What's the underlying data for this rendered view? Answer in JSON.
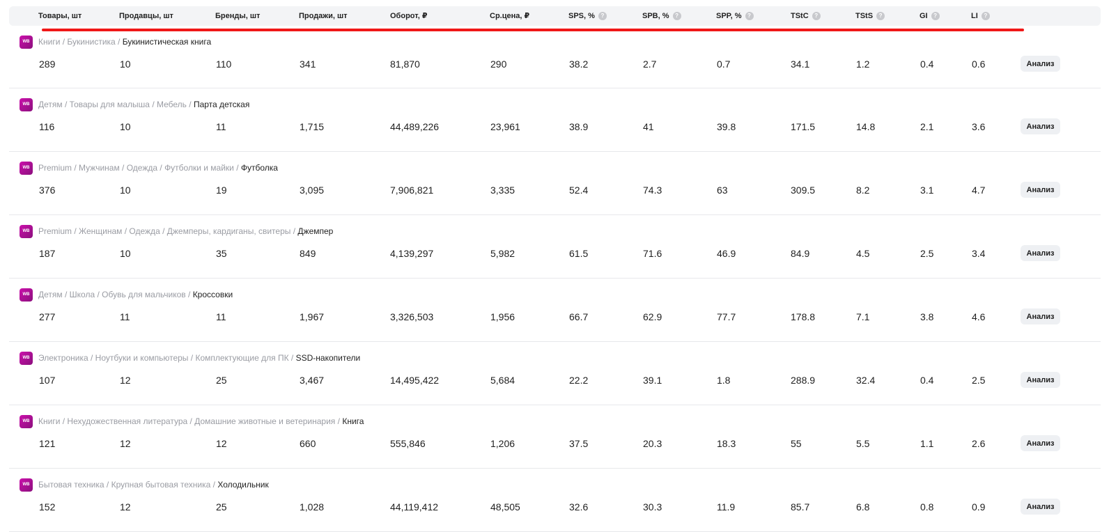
{
  "columns": [
    {
      "label": "Товары, шт",
      "help": false
    },
    {
      "label": "Продавцы, шт",
      "help": false
    },
    {
      "label": "Бренды, шт",
      "help": false
    },
    {
      "label": "Продажи, шт",
      "help": false
    },
    {
      "label": "Оборот, ₽",
      "help": false
    },
    {
      "label": "Ср.цена, ₽",
      "help": false
    },
    {
      "label": "SPS, %",
      "help": true
    },
    {
      "label": "SPB, %",
      "help": true
    },
    {
      "label": "SPP, %",
      "help": true
    },
    {
      "label": "TStC",
      "help": true
    },
    {
      "label": "TStS",
      "help": true
    },
    {
      "label": "GI",
      "help": true
    },
    {
      "label": "LI",
      "help": true
    }
  ],
  "logo_text": "WB",
  "help_glyph": "?",
  "action_label": "Анализ",
  "rows": [
    {
      "path": [
        "Книги",
        "Букинистика"
      ],
      "leaf": "Букинистическая книга",
      "values": [
        "289",
        "10",
        "110",
        "341",
        "81,870",
        "290",
        "38.2",
        "2.7",
        "0.7",
        "34.1",
        "1.2",
        "0.4",
        "0.6"
      ]
    },
    {
      "path": [
        "Детям",
        "Товары для малыша",
        "Мебель"
      ],
      "leaf": "Парта детская",
      "values": [
        "116",
        "10",
        "11",
        "1,715",
        "44,489,226",
        "23,961",
        "38.9",
        "41",
        "39.8",
        "171.5",
        "14.8",
        "2.1",
        "3.6"
      ]
    },
    {
      "path": [
        "Premium",
        "Мужчинам",
        "Одежда",
        "Футболки и майки"
      ],
      "leaf": "Футболка",
      "values": [
        "376",
        "10",
        "19",
        "3,095",
        "7,906,821",
        "3,335",
        "52.4",
        "74.3",
        "63",
        "309.5",
        "8.2",
        "3.1",
        "4.7"
      ]
    },
    {
      "path": [
        "Premium",
        "Женщинам",
        "Одежда",
        "Джемперы, кардиганы, свитеры"
      ],
      "leaf": "Джемпер",
      "values": [
        "187",
        "10",
        "35",
        "849",
        "4,139,297",
        "5,982",
        "61.5",
        "71.6",
        "46.9",
        "84.9",
        "4.5",
        "2.5",
        "3.4"
      ]
    },
    {
      "path": [
        "Детям",
        "Школа",
        "Обувь для мальчиков"
      ],
      "leaf": "Кроссовки",
      "values": [
        "277",
        "11",
        "11",
        "1,967",
        "3,326,503",
        "1,956",
        "66.7",
        "62.9",
        "77.7",
        "178.8",
        "7.1",
        "3.8",
        "4.6"
      ]
    },
    {
      "path": [
        "Электроника",
        "Ноутбуки и компьютеры",
        "Комплектующие для ПК"
      ],
      "leaf": "SSD-накопители",
      "values": [
        "107",
        "12",
        "25",
        "3,467",
        "14,495,422",
        "5,684",
        "22.2",
        "39.1",
        "1.8",
        "288.9",
        "32.4",
        "0.4",
        "2.5"
      ]
    },
    {
      "path": [
        "Книги",
        "Нехудожественная литература",
        "Домашние животные и ветеринария"
      ],
      "leaf": "Книга",
      "values": [
        "121",
        "12",
        "12",
        "660",
        "555,846",
        "1,206",
        "37.5",
        "20.3",
        "18.3",
        "55",
        "5.5",
        "1.1",
        "2.6"
      ]
    },
    {
      "path": [
        "Бытовая техника",
        "Крупная бытовая техника"
      ],
      "leaf": "Холодильник",
      "values": [
        "152",
        "12",
        "25",
        "1,028",
        "44,119,412",
        "48,505",
        "32.6",
        "30.3",
        "11.9",
        "85.7",
        "6.8",
        "0.8",
        "0.9"
      ]
    }
  ]
}
